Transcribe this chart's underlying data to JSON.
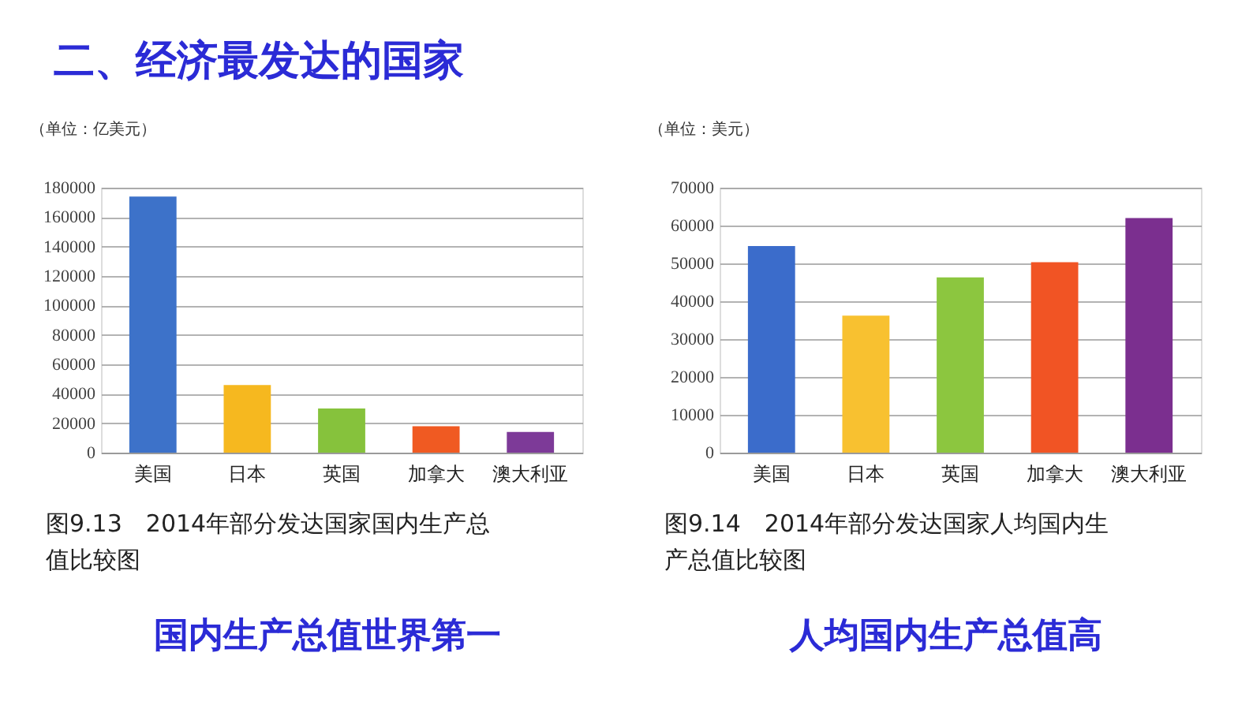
{
  "chart_data": [
    {
      "type": "bar",
      "title": "二、经济最发达的国家",
      "ylabel": "（单位：亿美元）",
      "categories": [
        "美国",
        "日本",
        "英国",
        "加拿大",
        "澳大利亚"
      ],
      "values": [
        174000,
        46000,
        30000,
        18000,
        14000
      ],
      "colors": [
        "#3d72c9",
        "#f6b81f",
        "#86c23c",
        "#f05a22",
        "#7d3a98"
      ],
      "ylim": [
        0,
        180000
      ],
      "yticks": [
        0,
        20000,
        40000,
        60000,
        80000,
        100000,
        120000,
        140000,
        160000,
        180000
      ],
      "grid": "y",
      "annotations": [
        "图9.13　2014年部分发达国家国内生产总值比较图",
        "国内生产总值世界第一"
      ]
    },
    {
      "type": "bar",
      "ylabel": "（单位：美元）",
      "categories": [
        "美国",
        "日本",
        "英国",
        "加拿大",
        "澳大利亚"
      ],
      "values": [
        54600,
        36200,
        46300,
        50300,
        62000
      ],
      "colors": [
        "#3b6ccb",
        "#f8c130",
        "#8cc63f",
        "#f15424",
        "#7b2f8f"
      ],
      "ylim": [
        0,
        70000
      ],
      "yticks": [
        0,
        10000,
        20000,
        30000,
        40000,
        50000,
        60000,
        70000
      ],
      "grid": "y",
      "annotations": [
        "图9.14　2014年部分发达国家人均国内生产总值比较图",
        "人均国内生产总值高"
      ]
    }
  ]
}
